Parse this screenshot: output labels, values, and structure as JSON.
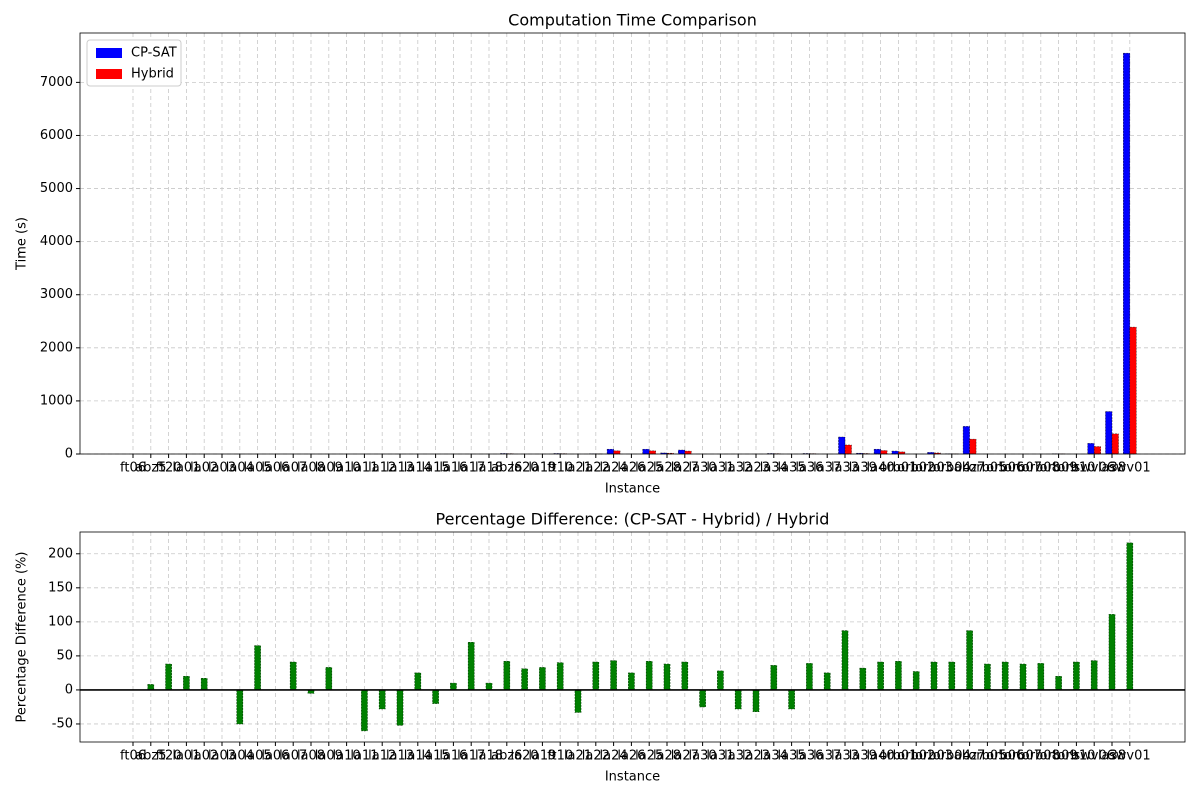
{
  "chart_data": [
    {
      "type": "bar",
      "title": "Computation Time Comparison",
      "xlabel": "Instance",
      "ylabel": "Time (s)",
      "categories": [
        "ft06",
        "abz5",
        "ft20",
        "la01",
        "la02",
        "la03",
        "la04",
        "la05",
        "la06",
        "la07",
        "la08",
        "la09",
        "la10",
        "la11",
        "la12",
        "la13",
        "la14",
        "la15",
        "la16",
        "la17",
        "la18",
        "abz6",
        "la20",
        "la19",
        "ft10",
        "la21",
        "la22",
        "la24",
        "la26",
        "la25",
        "la28",
        "la27",
        "la30",
        "la31",
        "la32",
        "la23",
        "la34",
        "la35",
        "la36",
        "la37",
        "la33",
        "la39",
        "la40",
        "orb01",
        "orb02",
        "orb03",
        "orb04",
        "abz7",
        "orb05",
        "orb06",
        "orb07",
        "orb08",
        "orb09",
        "orb10",
        "swv06",
        "la38",
        "swv01"
      ],
      "series": [
        {
          "name": "CP-SAT",
          "color": "#0000ff",
          "values": [
            0,
            0,
            0,
            0,
            0,
            0,
            0,
            0,
            0,
            0,
            0,
            0,
            0,
            0,
            0,
            0,
            0,
            0,
            0,
            0,
            0,
            10,
            0,
            0,
            10,
            0,
            5,
            90,
            0,
            90,
            20,
            75,
            0,
            0,
            0,
            0,
            10,
            0,
            10,
            0,
            320,
            15,
            90,
            55,
            0,
            30,
            5,
            520,
            0,
            0,
            0,
            0,
            5,
            0,
            200,
            800,
            7550
          ]
        },
        {
          "name": "Hybrid",
          "color": "#ff0000",
          "values": [
            0,
            0,
            0,
            0,
            0,
            0,
            0,
            0,
            0,
            0,
            0,
            0,
            0,
            0,
            0,
            0,
            0,
            0,
            0,
            0,
            0,
            7,
            0,
            0,
            7,
            0,
            3,
            60,
            0,
            60,
            15,
            55,
            0,
            0,
            0,
            0,
            7,
            0,
            7,
            0,
            170,
            10,
            65,
            40,
            0,
            20,
            3,
            280,
            0,
            0,
            0,
            0,
            4,
            0,
            140,
            380,
            2390
          ]
        }
      ],
      "ylim": [
        0,
        7930
      ],
      "yticks": [
        0,
        1000,
        2000,
        3000,
        4000,
        5000,
        6000,
        7000
      ],
      "grid": true,
      "legend": "upper left"
    },
    {
      "type": "bar",
      "title": "Percentage Difference: (CP-SAT - Hybrid) / Hybrid",
      "xlabel": "Instance",
      "ylabel": "Percentage Difference (%)",
      "categories": [
        "ft06",
        "abz5",
        "ft20",
        "la01",
        "la02",
        "la03",
        "la04",
        "la05",
        "la06",
        "la07",
        "la08",
        "la09",
        "la10",
        "la11",
        "la12",
        "la13",
        "la14",
        "la15",
        "la16",
        "la17",
        "la18",
        "abz6",
        "la20",
        "la19",
        "ft10",
        "la21",
        "la22",
        "la24",
        "la26",
        "la25",
        "la28",
        "la27",
        "la30",
        "la31",
        "la32",
        "la23",
        "la34",
        "la35",
        "la36",
        "la37",
        "la33",
        "la39",
        "la40",
        "orb01",
        "orb02",
        "orb03",
        "orb04",
        "abz7",
        "orb05",
        "orb06",
        "orb07",
        "orb08",
        "orb09",
        "orb10",
        "swv06",
        "la38",
        "swv01"
      ],
      "values": [
        0,
        8,
        38,
        20,
        17,
        0,
        -50,
        65,
        0,
        41,
        -5,
        33,
        0,
        -60,
        -28,
        -52,
        25,
        -20,
        10,
        70,
        10,
        42,
        31,
        33,
        40,
        -33,
        41,
        43,
        25,
        42,
        38,
        41,
        -25,
        28,
        -28,
        -32,
        36,
        -28,
        39,
        25,
        87,
        32,
        41,
        42,
        27,
        41,
        41,
        87,
        38,
        41,
        38,
        39,
        20,
        41,
        43,
        111,
        216
      ],
      "color": "#008000",
      "ylim": [
        -76.5,
        232
      ],
      "yticks": [
        -50,
        0,
        50,
        100,
        150,
        200
      ],
      "grid": true
    }
  ]
}
